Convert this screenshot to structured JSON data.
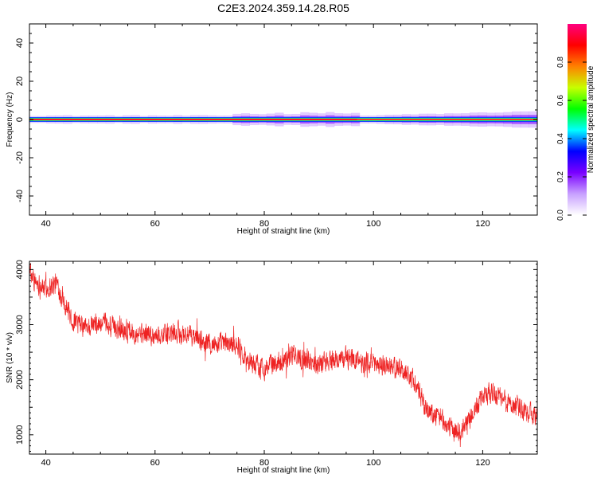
{
  "title": "C2E3.2024.359.14.28.R05",
  "colorbar": {
    "label": "Normalized spectral amplitude",
    "ticks": [
      "0.0",
      "0.2",
      "0.4",
      "0.6",
      "0.8"
    ],
    "tick_values": [
      0.0,
      0.2,
      0.4,
      0.6,
      0.8
    ],
    "range": [
      0,
      1
    ],
    "colormap": [
      "#ffffff",
      "#c8a0ff",
      "#7a00ff",
      "#0000ff",
      "#00ffff",
      "#00ff00",
      "#c8ff00",
      "#ff8000",
      "#ff0000",
      "#ff0080"
    ]
  },
  "chart_data": [
    {
      "type": "heatmap",
      "xlabel": "Height of straight line (km)",
      "ylabel": "Frequency (Hz)",
      "xlim": [
        37,
        130
      ],
      "ylim": [
        -50,
        50
      ],
      "xticks": [
        40,
        60,
        80,
        100,
        120
      ],
      "yticks": [
        -40,
        -20,
        0,
        20,
        40
      ],
      "description_series": [
        {
          "x_range": [
            37,
            73
          ],
          "core_frequency": 0,
          "peak_amplitude": 0.9
        },
        {
          "x_range": [
            73,
            97
          ],
          "core_frequency": 0,
          "peak_amplitude": 0.85
        },
        {
          "x_range": [
            97,
            130
          ],
          "core_frequency": 0,
          "peak_amplitude": 0.75
        }
      ]
    },
    {
      "type": "line",
      "xlabel": "Height of straight line (km)",
      "ylabel": "SNR (10 * v/v)",
      "xlim": [
        37,
        130
      ],
      "ylim": [
        650,
        4150
      ],
      "xticks": [
        40,
        60,
        80,
        100,
        120
      ],
      "yticks": [
        1000,
        2000,
        3000,
        4000
      ],
      "color": "#ee2222",
      "trend": [
        {
          "x": 37,
          "y": 3950
        },
        {
          "x": 38,
          "y": 3800
        },
        {
          "x": 40,
          "y": 3650
        },
        {
          "x": 42,
          "y": 3750
        },
        {
          "x": 43,
          "y": 3500
        },
        {
          "x": 45,
          "y": 3050
        },
        {
          "x": 47,
          "y": 2950
        },
        {
          "x": 50,
          "y": 3000
        },
        {
          "x": 55,
          "y": 2900
        },
        {
          "x": 60,
          "y": 2800
        },
        {
          "x": 65,
          "y": 2850
        },
        {
          "x": 70,
          "y": 2650
        },
        {
          "x": 75,
          "y": 2650
        },
        {
          "x": 77,
          "y": 2350
        },
        {
          "x": 80,
          "y": 2200
        },
        {
          "x": 85,
          "y": 2450
        },
        {
          "x": 90,
          "y": 2300
        },
        {
          "x": 95,
          "y": 2400
        },
        {
          "x": 100,
          "y": 2300
        },
        {
          "x": 105,
          "y": 2200
        },
        {
          "x": 107,
          "y": 2050
        },
        {
          "x": 110,
          "y": 1400
        },
        {
          "x": 112,
          "y": 1350
        },
        {
          "x": 114,
          "y": 1100
        },
        {
          "x": 116,
          "y": 1050
        },
        {
          "x": 118,
          "y": 1350
        },
        {
          "x": 120,
          "y": 1700
        },
        {
          "x": 122,
          "y": 1750
        },
        {
          "x": 125,
          "y": 1550
        },
        {
          "x": 128,
          "y": 1450
        },
        {
          "x": 130,
          "y": 1300
        }
      ],
      "noise_amplitude": 260
    }
  ]
}
